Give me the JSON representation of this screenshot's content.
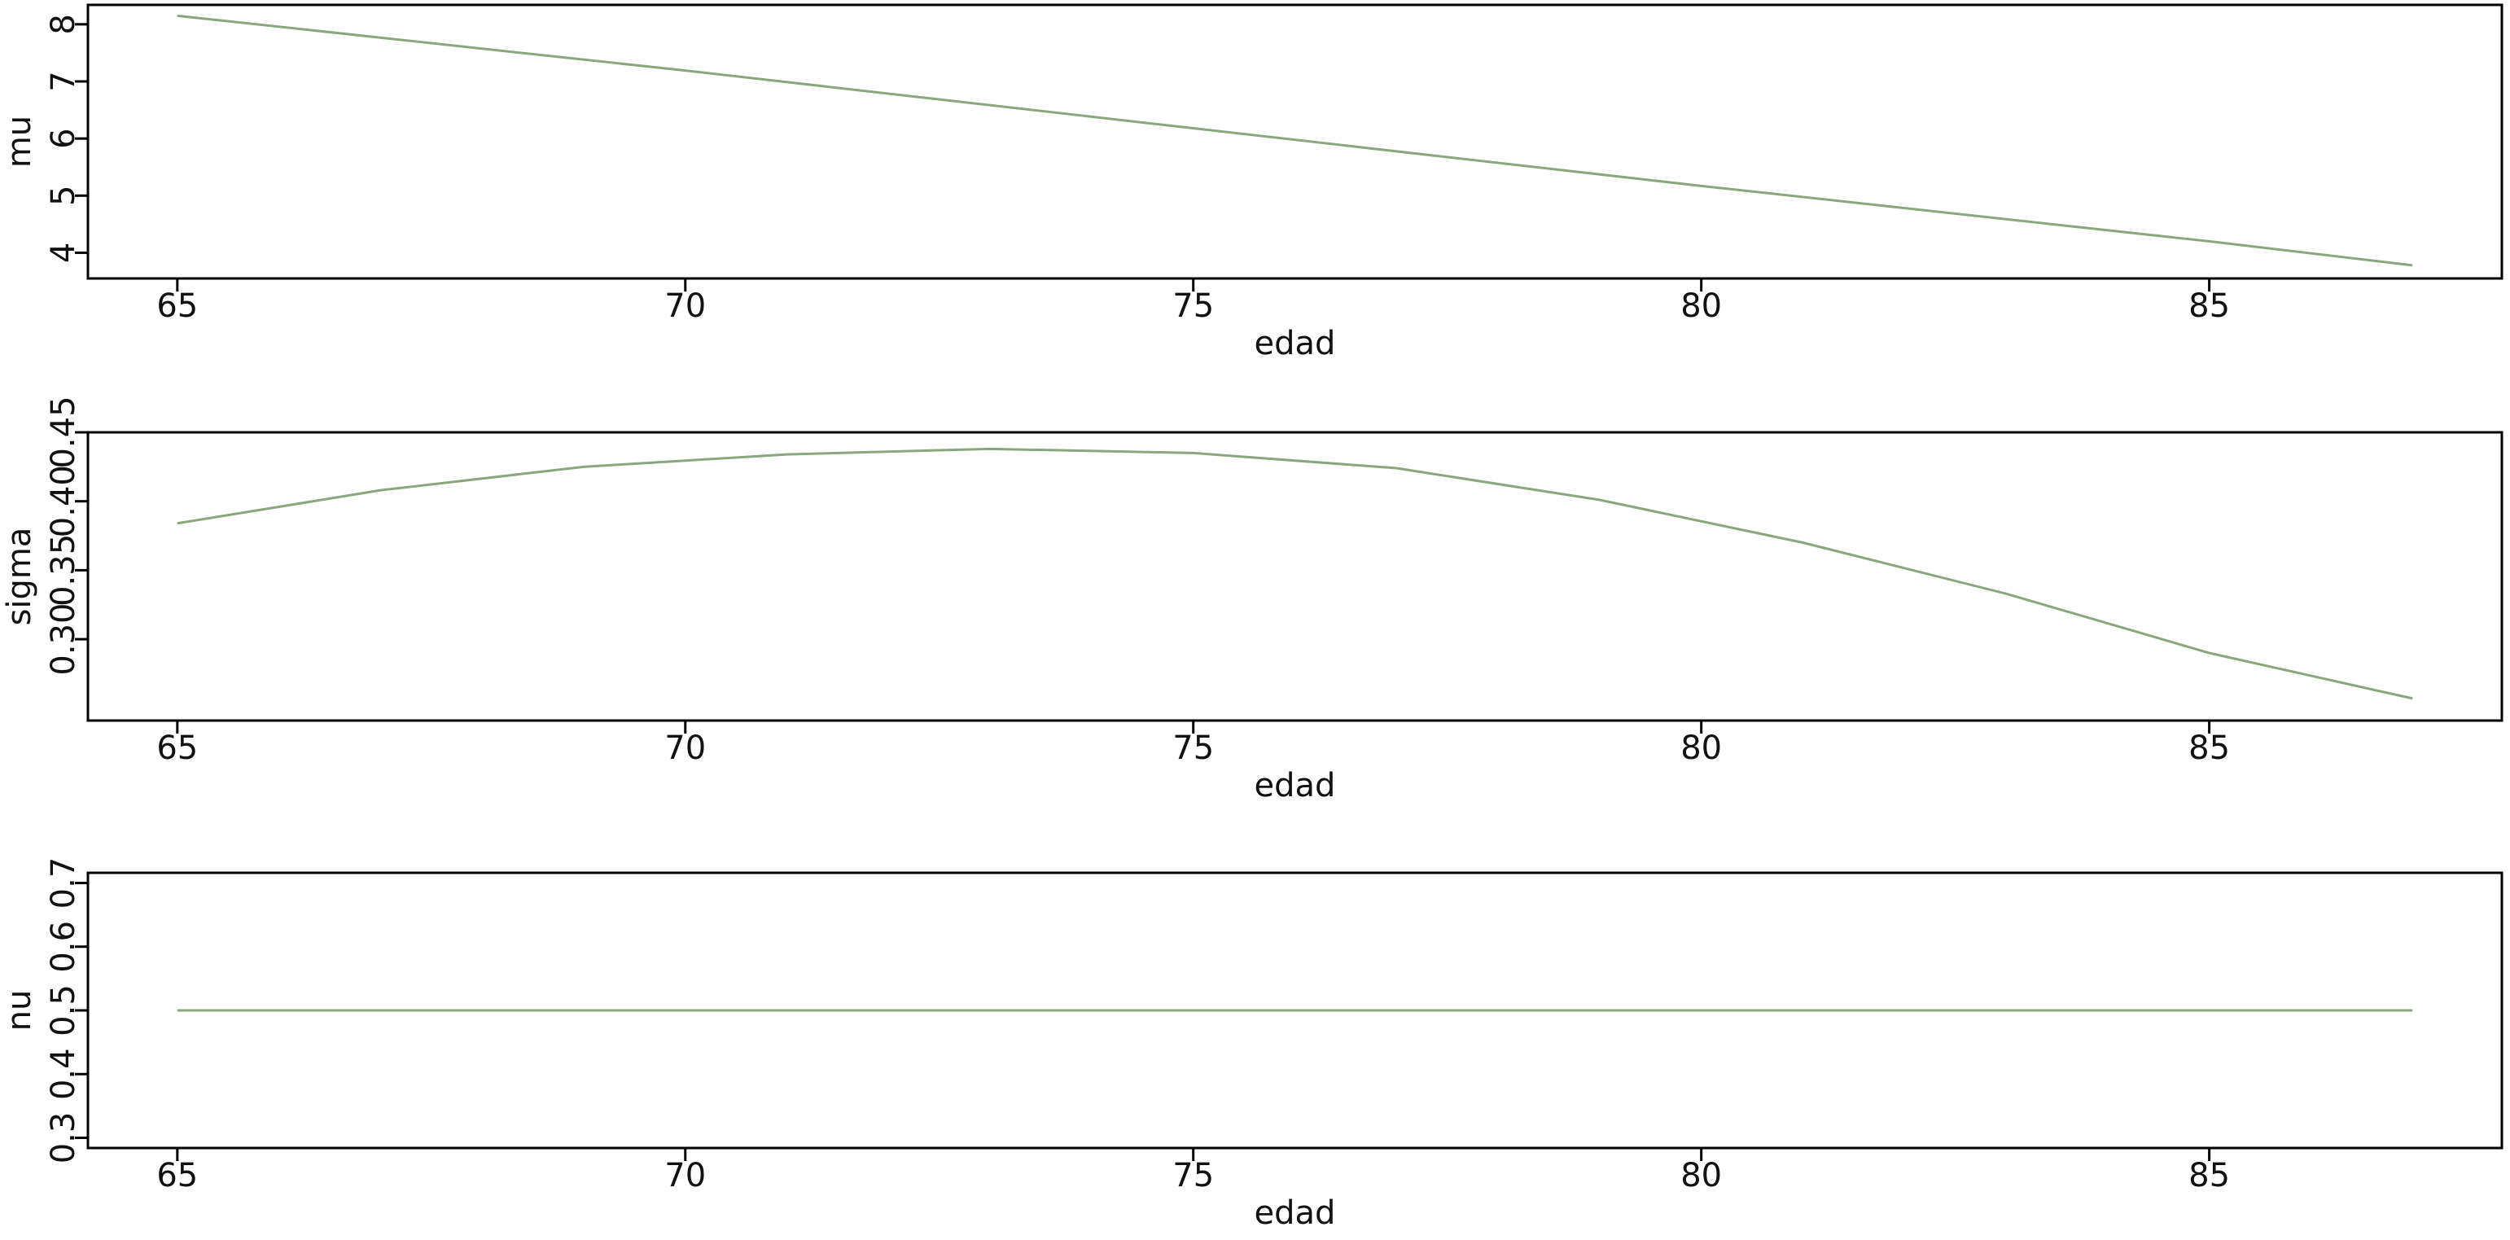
{
  "chart_data": [
    {
      "type": "line",
      "xlabel": "edad",
      "ylabel": "mu",
      "color": "#8aa67f",
      "x": [
        65,
        70,
        75,
        80,
        85,
        87
      ],
      "values": [
        8.15,
        7.19,
        6.18,
        5.17,
        4.2,
        3.78
      ],
      "xlim": [
        64.12,
        87.88
      ],
      "xticks": [
        65,
        70,
        75,
        80,
        85
      ],
      "ylim": [
        3.55,
        8.34
      ],
      "yticks": [
        4,
        5,
        6,
        7,
        8
      ]
    },
    {
      "type": "line",
      "xlabel": "edad",
      "ylabel": "sigma",
      "color": "#8aa67f",
      "x": [
        65,
        67,
        69,
        71,
        73,
        75,
        77,
        79,
        81,
        83,
        85,
        87
      ],
      "values": [
        0.384,
        0.408,
        0.425,
        0.434,
        0.438,
        0.435,
        0.424,
        0.401,
        0.37,
        0.333,
        0.29,
        0.257
      ],
      "xlim": [
        64.12,
        87.88
      ],
      "xticks": [
        65,
        70,
        75,
        80,
        85
      ],
      "ylim": [
        0.241,
        0.45
      ],
      "yticks": [
        {
          "value": 0.3,
          "label": "0.30"
        },
        {
          "value": 0.35,
          "label": "0.35"
        },
        {
          "value": 0.4,
          "label": "0.40"
        },
        {
          "value": 0.45,
          "label": "0.45"
        }
      ]
    },
    {
      "type": "line",
      "xlabel": "edad",
      "ylabel": "nu",
      "color": "#8aa67f",
      "x": [
        65,
        87
      ],
      "values": [
        0.5,
        0.5
      ],
      "xlim": [
        64.12,
        87.88
      ],
      "xticks": [
        65,
        70,
        75,
        80,
        85
      ],
      "ylim": [
        0.284,
        0.716
      ],
      "yticks": [
        0.3,
        0.4,
        0.5,
        0.6,
        0.7
      ]
    }
  ]
}
